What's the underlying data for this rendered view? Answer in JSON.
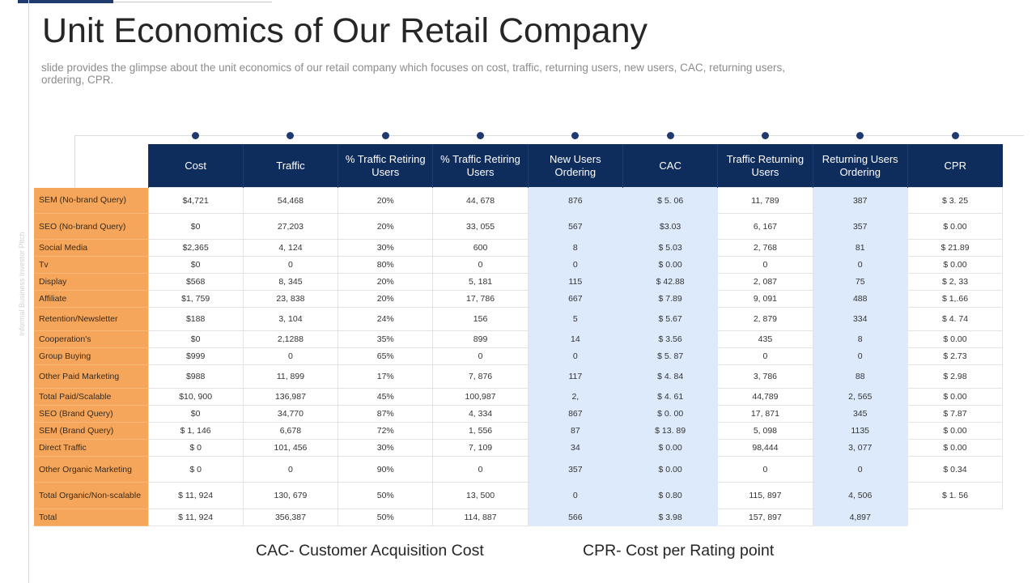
{
  "slide": {
    "title": "Unit Economics of Our Retail Company",
    "subtitle": "slide provides the glimpse about the unit economics of our retail company which focuses on cost, traffic, returning users, new users, CAC, returning users, ordering, CPR.",
    "side_text": "Informal Business Investor Pitch"
  },
  "table": {
    "headers": [
      "Cost",
      "Traffic",
      "% Traffic  Retiring Users",
      "% Traffic  Retiring Users",
      "New Users Ordering",
      "CAC",
      "Traffic Returning Users",
      "Returning Users Ordering",
      "CPR"
    ],
    "rows": [
      {
        "label": "SEM  (No-brand Query)",
        "cells": [
          "$4,721",
          "54,468",
          "20%",
          "44, 678",
          "876",
          "$ 5. 06",
          "11, 789",
          "387",
          "$ 3. 25"
        ]
      },
      {
        "label": "SEO  (No-brand Query)",
        "cells": [
          "$0",
          "27,203",
          "20%",
          "33, 055",
          "567",
          "$3.03",
          "6, 167",
          "357",
          "$ 0.00"
        ]
      },
      {
        "label": "Social Media",
        "cells": [
          "$2,365",
          "4, 124",
          "30%",
          "600",
          "8",
          "$ 5.03",
          "2, 768",
          "81",
          "$ 21.89"
        ]
      },
      {
        "label": "Tv",
        "cells": [
          "$0",
          "0",
          "80%",
          "0",
          "0",
          "$ 0.00",
          "0",
          "0",
          "$ 0.00"
        ]
      },
      {
        "label": "Display",
        "cells": [
          "$568",
          "8, 345",
          "20%",
          "5, 181",
          "115",
          "$ 42.88",
          "2, 087",
          "75",
          "$ 2, 33"
        ]
      },
      {
        "label": "Affiliate",
        "cells": [
          "$1, 759",
          "23, 838",
          "20%",
          "17, 786",
          "667",
          "$ 7.89",
          "9, 091",
          "488",
          "$ 1,.66"
        ]
      },
      {
        "label": "Retention/Newsletter",
        "cells": [
          "$188",
          "3, 104",
          "24%",
          "156",
          "5",
          "$ 5.67",
          "2, 879",
          "334",
          "$ 4. 74"
        ]
      },
      {
        "label": "Cooperation's",
        "cells": [
          "$0",
          "2,1288",
          "35%",
          "899",
          "14",
          "$ 3.56",
          "435",
          "8",
          "$ 0.00"
        ]
      },
      {
        "label": "Group Buying",
        "cells": [
          "$999",
          "0",
          "65%",
          "0",
          "0",
          "$ 5. 87",
          "0",
          "0",
          "$ 2.73"
        ]
      },
      {
        "label": "Other Paid Marketing",
        "cells": [
          "$988",
          "11, 899",
          "17%",
          "7, 876",
          "117",
          "$ 4. 84",
          "3, 786",
          "88",
          "$ 2.98"
        ]
      },
      {
        "label": "Total Paid/Scalable",
        "cells": [
          "$10, 900",
          "136,987",
          "45%",
          "100,987",
          "2,",
          "$ 4. 61",
          "44,789",
          "2, 565",
          "$ 0.00"
        ]
      },
      {
        "label": "SEO  (Brand Query)",
        "cells": [
          "$0",
          "34,770",
          "87%",
          "4, 334",
          "867",
          "$ 0. 00",
          "17, 871",
          "345",
          "$ 7.87"
        ]
      },
      {
        "label": "SEM  (Brand Query)",
        "cells": [
          "$ 1, 146",
          "6,678",
          "72%",
          "1, 556",
          "87",
          "$ 13. 89",
          "5, 098",
          "1135",
          "$ 0.00"
        ]
      },
      {
        "label": "Direct Traffic",
        "cells": [
          "$ 0",
          "101, 456",
          "30%",
          "7, 109",
          "34",
          "$ 0.00",
          "98,444",
          "3, 077",
          "$ 0.00"
        ]
      },
      {
        "label": "Other Organic Marketing",
        "cells": [
          "$ 0",
          "0",
          "90%",
          "0",
          "357",
          "$ 0.00",
          "0",
          "0",
          "$ 0.34"
        ]
      },
      {
        "label": "Total Organic/Non-scalable",
        "cells": [
          "$ 11, 924",
          "130, 679",
          "50%",
          "13, 500",
          "0",
          "$ 0.80",
          "115, 897",
          "4, 506",
          "$ 1. 56"
        ]
      },
      {
        "label": "Total",
        "cells": [
          "$ 11, 924",
          "356,387",
          "50%",
          "114, 887",
          "566",
          "$ 3.98",
          "157, 897",
          "4,897",
          ""
        ]
      }
    ]
  },
  "legend": {
    "cac": "CAC- Customer Acquisition Cost",
    "cpr": "CPR- Cost per Rating point"
  },
  "colors": {
    "header_bg": "#0f2d5c",
    "row_label_bg": "#f5a65b",
    "highlight_col_bg": "#ddeafb",
    "dot": "#1f3a6e"
  }
}
